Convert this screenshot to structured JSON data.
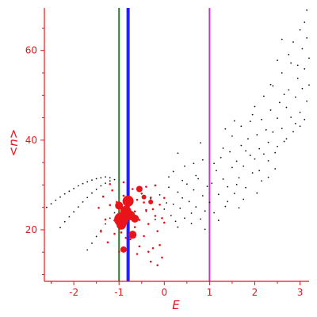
{
  "chart_data": {
    "type": "scatter",
    "title": "",
    "xlabel": "E",
    "ylabel": "<n>",
    "xlim": [
      -2.65,
      3.2
    ],
    "ylim": [
      8.5,
      69.5
    ],
    "xticks": [
      -2,
      -1,
      0,
      1,
      2,
      3
    ],
    "yticks": [
      20,
      40,
      60
    ],
    "xticklabels": [
      "-2",
      "-1",
      "0",
      "1",
      "2",
      "3"
    ],
    "yticklabels": [
      "20",
      "40",
      "60"
    ],
    "grid": false,
    "vlines": [
      {
        "x": -1.0,
        "color": "#1a8a1a"
      },
      {
        "x": -0.8,
        "color": "#1f1fff"
      },
      {
        "x": 1.0,
        "color": "#cc33cc"
      }
    ],
    "series": [
      {
        "color": "#111111",
        "points": [
          [
            -2.6,
            25.0
          ],
          [
            -2.5,
            25.8
          ],
          [
            -2.4,
            26.6
          ],
          [
            -2.3,
            27.3
          ],
          [
            -2.2,
            28.0
          ],
          [
            -2.1,
            28.6
          ],
          [
            -2.0,
            29.2
          ],
          [
            -1.9,
            29.8
          ],
          [
            -1.8,
            30.3
          ],
          [
            -1.7,
            30.7
          ],
          [
            -1.6,
            31.1
          ],
          [
            -1.5,
            31.4
          ],
          [
            -1.4,
            31.6
          ],
          [
            -1.3,
            31.8
          ],
          [
            -1.2,
            31.6
          ],
          [
            -1.1,
            31.2
          ],
          [
            -2.3,
            20.5
          ],
          [
            -2.2,
            21.8
          ],
          [
            -2.1,
            22.9
          ],
          [
            -2.0,
            24.0
          ],
          [
            -1.9,
            25.1
          ],
          [
            -1.8,
            26.2
          ],
          [
            -1.7,
            27.2
          ],
          [
            -1.6,
            28.2
          ],
          [
            -1.5,
            29.0
          ],
          [
            -1.4,
            29.8
          ],
          [
            -1.3,
            30.4
          ],
          [
            -1.2,
            30.9
          ],
          [
            -1.7,
            15.5
          ],
          [
            -1.6,
            17.0
          ],
          [
            -1.5,
            18.5
          ],
          [
            -1.4,
            19.9
          ],
          [
            -1.3,
            21.3
          ],
          [
            -1.2,
            22.6
          ],
          [
            -1.1,
            23.8
          ],
          [
            -0.4,
            24.1
          ],
          [
            -0.3,
            26.9
          ],
          [
            -0.2,
            22.3
          ],
          [
            -0.1,
            27.8
          ],
          [
            0.0,
            24.6
          ],
          [
            0.05,
            26.0
          ],
          [
            0.1,
            29.5
          ],
          [
            0.15,
            23.2
          ],
          [
            0.2,
            25.7
          ],
          [
            0.25,
            21.9
          ],
          [
            0.3,
            28.4
          ],
          [
            0.35,
            24.8
          ],
          [
            0.4,
            27.1
          ],
          [
            0.45,
            22.6
          ],
          [
            0.5,
            30.2
          ],
          [
            0.55,
            26.3
          ],
          [
            0.6,
            23.7
          ],
          [
            0.65,
            28.9
          ],
          [
            0.7,
            25.1
          ],
          [
            0.75,
            31.4
          ],
          [
            0.8,
            22.4
          ],
          [
            0.85,
            27.6
          ],
          [
            0.9,
            24.2
          ],
          [
            0.95,
            29.7
          ],
          [
            0.2,
            33.0
          ],
          [
            0.45,
            34.2
          ],
          [
            0.7,
            32.1
          ],
          [
            0.85,
            35.6
          ],
          [
            0.3,
            20.6
          ],
          [
            0.6,
            21.4
          ],
          [
            0.9,
            20.1
          ],
          [
            0.1,
            31.8
          ],
          [
            0.4,
            31.0
          ],
          [
            0.65,
            34.8
          ],
          [
            1.0,
            26.1
          ],
          [
            1.05,
            30.4
          ],
          [
            1.1,
            23.8
          ],
          [
            1.15,
            33.2
          ],
          [
            1.2,
            27.9
          ],
          [
            1.25,
            36.1
          ],
          [
            1.3,
            31.3
          ],
          [
            1.35,
            25.2
          ],
          [
            1.4,
            29.6
          ],
          [
            1.45,
            37.4
          ],
          [
            1.5,
            33.9
          ],
          [
            1.55,
            28.1
          ],
          [
            1.6,
            35.3
          ],
          [
            1.65,
            31.6
          ],
          [
            1.7,
            38.8
          ],
          [
            1.75,
            34.2
          ],
          [
            1.8,
            29.4
          ],
          [
            1.85,
            40.3
          ],
          [
            1.9,
            36.6
          ],
          [
            1.95,
            32.7
          ],
          [
            1.1,
            34.8
          ],
          [
            1.2,
            22.1
          ],
          [
            1.3,
            38.2
          ],
          [
            1.4,
            26.3
          ],
          [
            1.5,
            40.9
          ],
          [
            1.6,
            30.1
          ],
          [
            1.7,
            43.1
          ],
          [
            1.8,
            37.6
          ],
          [
            1.9,
            44.2
          ],
          [
            1.75,
            26.8
          ],
          [
            2.0,
            35.8
          ],
          [
            2.05,
            41.2
          ],
          [
            2.1,
            38.1
          ],
          [
            2.15,
            44.6
          ],
          [
            2.2,
            36.9
          ],
          [
            2.25,
            42.3
          ],
          [
            2.3,
            39.5
          ],
          [
            2.35,
            46.7
          ],
          [
            2.4,
            41.8
          ],
          [
            2.45,
            37.2
          ],
          [
            2.5,
            44.9
          ],
          [
            2.55,
            48.4
          ],
          [
            2.6,
            42.6
          ],
          [
            2.65,
            39.7
          ],
          [
            2.7,
            47.3
          ],
          [
            2.75,
            51.2
          ],
          [
            2.8,
            45.1
          ],
          [
            2.85,
            41.9
          ],
          [
            2.9,
            49.6
          ],
          [
            2.95,
            53.8
          ],
          [
            2.0,
            47.5
          ],
          [
            2.1,
            33.2
          ],
          [
            2.2,
            49.8
          ],
          [
            2.3,
            35.4
          ],
          [
            2.4,
            52.1
          ],
          [
            2.5,
            38.6
          ],
          [
            2.6,
            55.0
          ],
          [
            2.7,
            40.3
          ],
          [
            2.8,
            57.2
          ],
          [
            2.9,
            43.7
          ],
          [
            3.0,
            46.2
          ],
          [
            3.05,
            51.5
          ],
          [
            3.1,
            55.9
          ],
          [
            3.15,
            48.7
          ],
          [
            3.2,
            58.3
          ],
          [
            3.0,
            43.1
          ],
          [
            3.05,
            60.4
          ],
          [
            3.1,
            44.6
          ],
          [
            3.15,
            62.8
          ],
          [
            3.2,
            52.3
          ],
          [
            2.6,
            62.5
          ],
          [
            2.75,
            59.1
          ],
          [
            3.0,
            64.6
          ],
          [
            3.1,
            66.3
          ],
          [
            3.15,
            69.0
          ],
          [
            2.95,
            56.7
          ],
          [
            2.35,
            52.4
          ],
          [
            2.5,
            57.8
          ],
          [
            2.85,
            61.9
          ],
          [
            2.65,
            50.2
          ],
          [
            0.3,
            37.1
          ],
          [
            0.8,
            39.4
          ],
          [
            1.35,
            42.5
          ],
          [
            1.55,
            44.3
          ],
          [
            1.95,
            45.7
          ],
          [
            2.15,
            30.9
          ],
          [
            2.45,
            33.6
          ],
          [
            1.65,
            24.9
          ],
          [
            2.05,
            28.2
          ],
          [
            2.3,
            31.7
          ]
        ]
      },
      {
        "color": "#e8141a",
        "points": [
          [
            -1.2,
            25.5
          ],
          [
            -1.15,
            28.8
          ],
          [
            -1.1,
            22.1
          ],
          [
            -1.05,
            26.2
          ],
          [
            -1.0,
            23.3
          ],
          [
            -0.95,
            19.4
          ],
          [
            -0.9,
            27.6
          ],
          [
            -0.85,
            21.4
          ],
          [
            -0.8,
            25.2
          ],
          [
            -0.75,
            17.9
          ],
          [
            -0.7,
            23.8
          ],
          [
            -0.65,
            20.6
          ],
          [
            -0.6,
            26.7
          ],
          [
            -0.55,
            22.2
          ],
          [
            -0.5,
            28.1
          ],
          [
            -0.45,
            18.6
          ],
          [
            -0.4,
            24.4
          ],
          [
            -0.35,
            21.3
          ],
          [
            -0.3,
            27.2
          ],
          [
            -0.25,
            15.9
          ],
          [
            -0.2,
            23.1
          ],
          [
            -0.15,
            19.7
          ],
          [
            -0.1,
            25.6
          ],
          [
            -0.05,
            13.8
          ],
          [
            0.0,
            21.6
          ],
          [
            -1.3,
            22.3
          ],
          [
            -1.35,
            27.4
          ],
          [
            -1.4,
            19.6
          ],
          [
            -1.45,
            24.9
          ],
          [
            -1.25,
            17.2
          ],
          [
            -1.2,
            30.2
          ],
          [
            -1.0,
            15.1
          ],
          [
            -0.9,
            30.6
          ],
          [
            -0.7,
            29.1
          ],
          [
            -0.6,
            14.6
          ],
          [
            -0.4,
            29.6
          ],
          [
            -0.3,
            12.9
          ],
          [
            -0.2,
            29.9
          ],
          [
            -0.1,
            16.6
          ],
          [
            0.0,
            27.1
          ],
          [
            -1.1,
            19.1
          ],
          [
            -0.95,
            24.6
          ],
          [
            -0.85,
            18.2
          ],
          [
            -0.65,
            24.1
          ],
          [
            -0.55,
            16.3
          ],
          [
            -0.45,
            26.1
          ],
          [
            -0.35,
            15.1
          ],
          [
            -0.25,
            24.6
          ],
          [
            -0.15,
            12.1
          ],
          [
            -0.05,
            22.6
          ]
        ]
      },
      {
        "color": "#e8141a",
        "points": [
          [
            -0.95,
            22.3
          ],
          [
            -0.8,
            26.4
          ],
          [
            -0.85,
            24.1
          ],
          [
            -0.75,
            23.2
          ],
          [
            -1.0,
            25.4
          ],
          [
            -0.65,
            22.5
          ],
          [
            -0.95,
            21.1
          ],
          [
            -0.55,
            29.1
          ],
          [
            -0.7,
            18.9
          ],
          [
            -0.9,
            15.6
          ],
          [
            -0.3,
            26.2
          ],
          [
            -0.45,
            27.3
          ]
        ],
        "sizes": [
          9,
          7,
          7,
          6,
          5,
          5,
          6,
          4,
          5,
          4,
          3,
          3
        ]
      }
    ]
  }
}
